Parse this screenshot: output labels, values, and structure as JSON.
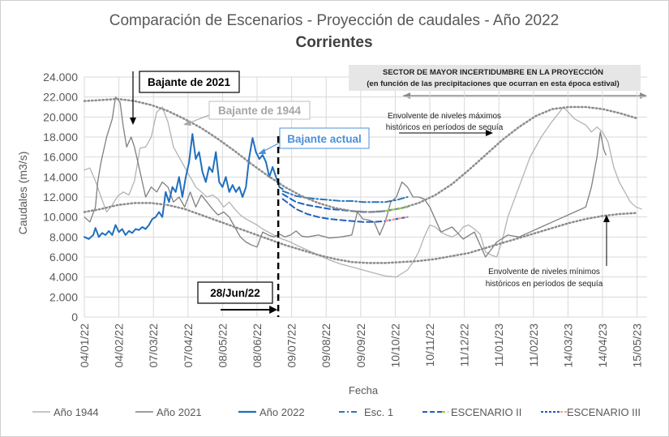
{
  "chart_data": {
    "type": "line",
    "title": "Comparación de Escenarios - Proyección de caudales - Año 2022",
    "subtitle": "Corrientes",
    "xlabel": "Fecha",
    "ylabel": "Caudales (m3/s)",
    "ylim": [
      0,
      24000
    ],
    "yticks": [
      "0",
      "2.000",
      "4.000",
      "6.000",
      "8.000",
      "10.000",
      "12.000",
      "14.000",
      "16.000",
      "18.000",
      "20.000",
      "22.000",
      "24.000"
    ],
    "xlim_days": [
      0,
      505
    ],
    "x_unit": "days since 04/01/22",
    "xticks": [
      {
        "label": "04/01/22",
        "day": 0
      },
      {
        "label": "04/02/22",
        "day": 31
      },
      {
        "label": "07/03/22",
        "day": 62
      },
      {
        "label": "07/04/22",
        "day": 93
      },
      {
        "label": "08/05/22",
        "day": 124
      },
      {
        "label": "08/06/22",
        "day": 155
      },
      {
        "label": "09/07/22",
        "day": 186
      },
      {
        "label": "09/08/22",
        "day": 217
      },
      {
        "label": "09/09/22",
        "day": 248
      },
      {
        "label": "10/10/22",
        "day": 279
      },
      {
        "label": "10/11/22",
        "day": 310
      },
      {
        "label": "11/12/22",
        "day": 341
      },
      {
        "label": "11/01/23",
        "day": 372
      },
      {
        "label": "11/02/23",
        "day": 403
      },
      {
        "label": "14/03/23",
        "day": 434
      },
      {
        "label": "14/04/23",
        "day": 465
      },
      {
        "label": "15/05/23",
        "day": 496
      }
    ],
    "legend_position": "bottom",
    "series": [
      {
        "name": "Año 1944",
        "color": "#b3b3b3",
        "style": "solid",
        "x": [
          0,
          5,
          10,
          15,
          20,
          25,
          30,
          35,
          40,
          45,
          50,
          55,
          60,
          65,
          70,
          75,
          80,
          85,
          90,
          95,
          100,
          105,
          110,
          115,
          120,
          125,
          130,
          135,
          140,
          145,
          150,
          155,
          160,
          165,
          170,
          175,
          180,
          185,
          190,
          200,
          210,
          220,
          230,
          240,
          250,
          260,
          270,
          280,
          290,
          295,
          300,
          305,
          310,
          315,
          320,
          325,
          330,
          335,
          340,
          345,
          350,
          355,
          360,
          365,
          370,
          375,
          380,
          390,
          400,
          410,
          420,
          430,
          440,
          450,
          455,
          460,
          465,
          470,
          475,
          480,
          485,
          490,
          495,
          500
        ],
        "y": [
          14700,
          14900,
          13600,
          12000,
          10500,
          11200,
          12100,
          12500,
          12200,
          13600,
          16900,
          17000,
          18000,
          20500,
          21000,
          19500,
          17000,
          16000,
          15000,
          14000,
          13000,
          12500,
          12000,
          12200,
          11800,
          11000,
          11500,
          10800,
          10200,
          9800,
          9500,
          9200,
          8800,
          8500,
          8200,
          7900,
          7700,
          7500,
          7200,
          6700,
          6200,
          5700,
          5300,
          5000,
          4700,
          4400,
          4100,
          4000,
          4700,
          5500,
          6500,
          8000,
          9200,
          9000,
          8500,
          8200,
          8000,
          8300,
          9000,
          9200,
          8800,
          8300,
          6500,
          6200,
          6000,
          7600,
          10000,
          13000,
          16000,
          18000,
          19600,
          21000,
          19800,
          19200,
          18500,
          19000,
          18500,
          17500,
          15000,
          13500,
          12500,
          11500,
          11000,
          10800
        ]
      },
      {
        "name": "Año 2021",
        "color": "#7f7f7f",
        "style": "solid",
        "x": [
          0,
          5,
          10,
          12,
          15,
          20,
          25,
          28,
          32,
          35,
          38,
          42,
          45,
          48,
          52,
          55,
          60,
          65,
          70,
          75,
          80,
          85,
          90,
          95,
          100,
          105,
          110,
          115,
          120,
          125,
          130,
          135,
          140,
          145,
          150,
          155,
          160,
          165,
          170,
          175,
          180,
          185,
          190,
          195,
          200,
          210,
          220,
          230,
          240,
          245,
          250,
          255,
          260,
          265,
          270,
          275,
          280,
          285,
          290,
          295,
          300,
          305,
          310,
          320,
          330,
          340,
          350,
          360,
          370,
          380,
          390,
          400,
          410,
          420,
          430,
          440,
          450,
          455,
          460,
          463,
          466,
          468
        ],
        "y": [
          10000,
          9500,
          11000,
          13500,
          15500,
          18000,
          19800,
          22000,
          21500,
          19000,
          17000,
          18000,
          17000,
          15500,
          13500,
          12000,
          13000,
          12500,
          13500,
          13000,
          11500,
          12000,
          11000,
          12500,
          11000,
          12200,
          11500,
          10800,
          10200,
          10500,
          10000,
          9000,
          8000,
          7500,
          7200,
          7000,
          8500,
          8200,
          8000,
          8300,
          8000,
          8200,
          8600,
          8100,
          8000,
          8200,
          7900,
          8000,
          8200,
          10500,
          9800,
          9700,
          9500,
          8200,
          9500,
          11500,
          12000,
          13500,
          13000,
          12000,
          12000,
          11800,
          11000,
          8500,
          9000,
          7800,
          8500,
          6000,
          7500,
          8200,
          8000,
          8500,
          9000,
          9500,
          10000,
          10500,
          11000,
          13000,
          16000,
          18500,
          16800,
          16200
        ]
      },
      {
        "name": "Año 2022",
        "color": "#1f6fbf",
        "style": "solid",
        "width": 2,
        "x": [
          0,
          4,
          8,
          10,
          13,
          16,
          19,
          22,
          25,
          28,
          31,
          34,
          37,
          40,
          43,
          46,
          49,
          52,
          55,
          58,
          61,
          64,
          67,
          70,
          73,
          76,
          79,
          82,
          85,
          88,
          91,
          94,
          97,
          100,
          103,
          106,
          109,
          112,
          115,
          118,
          121,
          124,
          127,
          130,
          133,
          136,
          139,
          142,
          145,
          148,
          151,
          154,
          157,
          160,
          163,
          166,
          169,
          172,
          175,
          178
        ],
        "y": [
          8000,
          7800,
          8200,
          8900,
          8000,
          8400,
          8200,
          8600,
          8200,
          9200,
          8500,
          8800,
          8200,
          8600,
          8400,
          8800,
          8700,
          9000,
          8800,
          9200,
          9800,
          10000,
          10500,
          10000,
          12500,
          11500,
          13000,
          12500,
          14000,
          12000,
          14000,
          15500,
          18300,
          15800,
          16500,
          14500,
          13500,
          15000,
          14500,
          16500,
          13500,
          13000,
          14000,
          12500,
          13200,
          12500,
          13000,
          12000,
          13000,
          16000,
          17900,
          16500,
          15800,
          16200,
          15500,
          14000,
          15000,
          14000,
          13000,
          12800
        ]
      },
      {
        "name": "Esc. 1",
        "color": "#2e75b6",
        "style": "dashdot",
        "x": [
          178,
          190,
          200,
          210,
          220,
          230,
          240,
          250,
          260,
          270,
          280,
          290
        ],
        "y": [
          12600,
          12100,
          11900,
          11800,
          11700,
          11600,
          11600,
          11500,
          11500,
          11500,
          11700,
          12000
        ]
      },
      {
        "name": "ESCENARIO II",
        "color": "#1f5fbf",
        "style": "dashed",
        "x": [
          178,
          190,
          200,
          210,
          220,
          230,
          240,
          250,
          260,
          270,
          280,
          290
        ],
        "y": [
          12300,
          11500,
          11200,
          11000,
          10800,
          10700,
          10600,
          10500,
          10500,
          10600,
          10800,
          11000
        ]
      },
      {
        "name": "ESCENARIO III",
        "color": "#1f5fbf",
        "style": "dashed",
        "x": [
          178,
          190,
          200,
          210,
          220,
          230,
          240,
          250,
          260,
          270,
          280,
          290
        ],
        "y": [
          11800,
          10800,
          10300,
          10000,
          9800,
          9700,
          9600,
          9500,
          9500,
          9600,
          9800,
          10000
        ]
      },
      {
        "name": "Envolvente máximos",
        "color": "#8c8c8c",
        "style": "dotted",
        "x": [
          0,
          15,
          30,
          45,
          60,
          75,
          90,
          105,
          120,
          135,
          150,
          165,
          180,
          195,
          210,
          225,
          240,
          255,
          270,
          285,
          300,
          315,
          330,
          345,
          360,
          375,
          390,
          405,
          420,
          435,
          450,
          465,
          480,
          495
        ],
        "y": [
          21600,
          21700,
          21800,
          21600,
          21200,
          20600,
          19800,
          18900,
          17800,
          16600,
          15300,
          14100,
          13000,
          12100,
          11400,
          10900,
          10600,
          10500,
          10600,
          10900,
          11400,
          12200,
          13300,
          14700,
          16200,
          17700,
          19000,
          20100,
          20800,
          21000,
          21000,
          20800,
          20400,
          19900
        ]
      },
      {
        "name": "Envolvente mínimos",
        "color": "#8c8c8c",
        "style": "dotted",
        "x": [
          0,
          15,
          30,
          45,
          60,
          75,
          90,
          105,
          120,
          135,
          150,
          165,
          180,
          195,
          210,
          225,
          240,
          255,
          270,
          285,
          300,
          315,
          330,
          345,
          360,
          375,
          390,
          405,
          420,
          435,
          450,
          465,
          480,
          495
        ],
        "y": [
          10500,
          10800,
          11200,
          11400,
          11400,
          11200,
          10800,
          10200,
          9600,
          9000,
          8400,
          7800,
          7200,
          6700,
          6200,
          5800,
          5500,
          5400,
          5400,
          5500,
          5600,
          5800,
          6100,
          6400,
          6900,
          7400,
          7900,
          8400,
          8900,
          9400,
          9800,
          10100,
          10300,
          10400
        ]
      }
    ],
    "annotations": {
      "bajante_2021": "Bajante de 2021",
      "bajante_1944": "Bajante de 1944",
      "bajante_actual": "Bajante actual",
      "fecha_corte": "28/Jun/22",
      "sector_title": "SECTOR DE MAYOR INCERTIDUMBRE EN LA PROYECCIÓN",
      "sector_subtitle": "(en función de las precipitaciones que ocurran en esta época estival)",
      "env_max_1": "Envolvente de niveles máximos",
      "env_max_2": "históricos en períodos de sequía",
      "env_min_1": "Envolvente de niveles mínimos",
      "env_min_2": "históricos en períodos de sequía"
    }
  },
  "legend": [
    {
      "label": "Año 1944"
    },
    {
      "label": "Año 2021"
    },
    {
      "label": "Año 2022"
    },
    {
      "label": "Esc. 1"
    },
    {
      "label": "ESCENARIO II"
    },
    {
      "label": "ESCENARIO III"
    }
  ],
  "colors": {
    "y1944": "#b3b3b3",
    "y2021": "#7f7f7f",
    "y2022": "#1f6fbf",
    "scenario": "#2e75b6",
    "envelope": "#8c8c8c",
    "grid": "#d9d9d9",
    "band": "#e7e6e6"
  }
}
